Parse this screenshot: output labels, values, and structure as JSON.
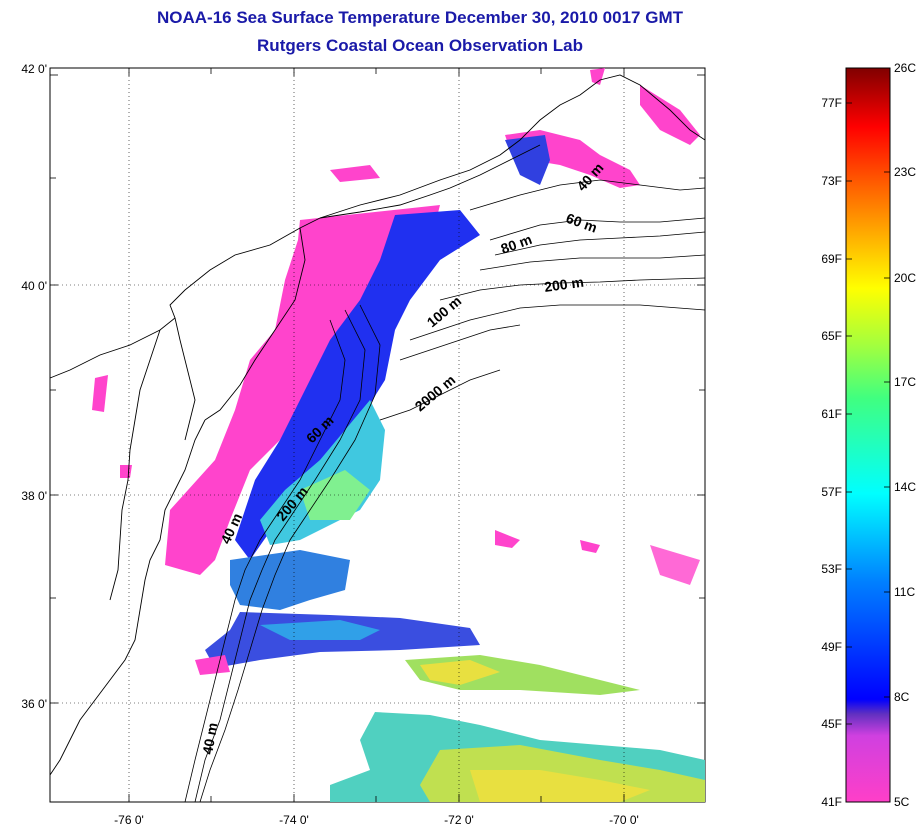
{
  "title": "NOAA-16 Sea Surface Temperature December 30, 2010 0017 GMT",
  "subtitle": "Rutgers Coastal Ocean Observation Lab",
  "map": {
    "lat_ticks": [
      "42 0'",
      "40 0'",
      "38 0'",
      "36 0'"
    ],
    "lon_ticks": [
      "-76 0'",
      "-74 0'",
      "-72 0'",
      "-70 0'"
    ],
    "contour_labels": [
      "40 m",
      "60 m",
      "80 m",
      "200 m",
      "100 m",
      "2000 m",
      "60 m",
      "200 m",
      "40 m",
      "40 m"
    ]
  },
  "colorbar": {
    "fahrenheit": [
      "77F",
      "73F",
      "69F",
      "65F",
      "61F",
      "57F",
      "53F",
      "49F",
      "45F",
      "41F"
    ],
    "celsius": [
      "26C",
      "23C",
      "20C",
      "17C",
      "14C",
      "11C",
      "8C",
      "5C"
    ]
  }
}
